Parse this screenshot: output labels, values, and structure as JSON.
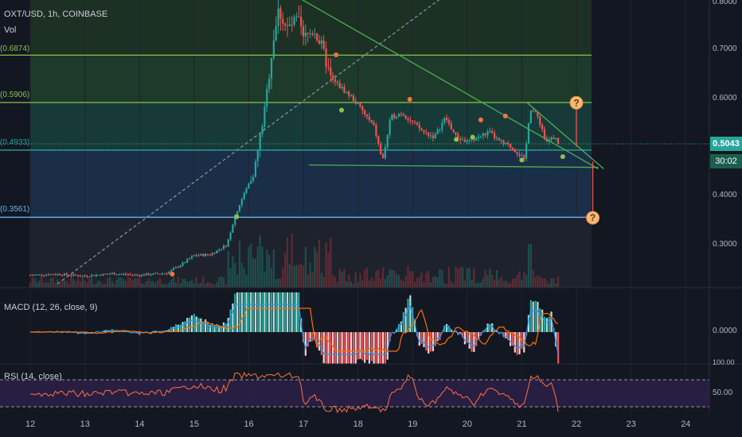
{
  "header": {
    "symbol": "OXT/USD, 1h, COINBASE",
    "vol_label": "Vol"
  },
  "price_axis": {
    "ticks": [
      "0.8000",
      "0.7000",
      "0.6000",
      "0.4000",
      "0.3000"
    ],
    "current_price": "0.5043",
    "countdown": "30:02"
  },
  "fib_levels": [
    {
      "label": "(0.6874)",
      "value": 0.6874,
      "color": "#8bc34a"
    },
    {
      "label": "(0.5906)",
      "value": 0.5906,
      "color": "#8bc34a"
    },
    {
      "label": "(0.4933)",
      "value": 0.4933,
      "color": "#26a69a"
    },
    {
      "label": "(0.3561)",
      "value": 0.3561,
      "color": "#64b5f6"
    }
  ],
  "macd": {
    "label": "MACD (12, 26, close, 9)",
    "tick": "0.0000",
    "top_tick": "100.00"
  },
  "rsi": {
    "label": "RSI (14, close)",
    "tick": "50.00"
  },
  "time_axis": [
    "12",
    "13",
    "14",
    "15",
    "16",
    "17",
    "18",
    "19",
    "20",
    "21",
    "22",
    "23",
    "24"
  ],
  "annotations": {
    "question_mark": "?"
  },
  "colors": {
    "background": "#131722",
    "up": "#26a69a",
    "down": "#ef5350",
    "trend": "#4caf50",
    "rsi": "#ff7043",
    "macd_line": "#2196f3",
    "signal_line": "#ff6d00"
  },
  "chart_data": {
    "type": "candlestick",
    "title": "OXT/USD, 1h, COINBASE",
    "x_ticks": [
      "12",
      "13",
      "14",
      "15",
      "16",
      "17",
      "18",
      "19",
      "20",
      "21",
      "22",
      "23",
      "24"
    ],
    "y_ticks": [
      0.8,
      0.7,
      0.6,
      0.4,
      0.3
    ],
    "ylim": [
      0.22,
      0.81
    ],
    "close_path": [
      [
        12.0,
        0.238
      ],
      [
        12.5,
        0.24
      ],
      [
        13.0,
        0.236
      ],
      [
        13.5,
        0.241
      ],
      [
        14.0,
        0.238
      ],
      [
        14.5,
        0.242
      ],
      [
        14.8,
        0.262
      ],
      [
        15.0,
        0.278
      ],
      [
        15.3,
        0.28
      ],
      [
        15.6,
        0.3
      ],
      [
        15.75,
        0.36
      ],
      [
        15.9,
        0.4
      ],
      [
        16.1,
        0.45
      ],
      [
        16.3,
        0.58
      ],
      [
        16.45,
        0.72
      ],
      [
        16.55,
        0.78
      ],
      [
        16.7,
        0.74
      ],
      [
        16.9,
        0.76
      ],
      [
        17.0,
        0.72
      ],
      [
        17.2,
        0.74
      ],
      [
        17.35,
        0.7
      ],
      [
        17.5,
        0.64
      ],
      [
        17.7,
        0.62
      ],
      [
        17.9,
        0.6
      ],
      [
        18.1,
        0.57
      ],
      [
        18.3,
        0.54
      ],
      [
        18.45,
        0.47
      ],
      [
        18.6,
        0.56
      ],
      [
        18.8,
        0.57
      ],
      [
        19.0,
        0.55
      ],
      [
        19.2,
        0.53
      ],
      [
        19.4,
        0.52
      ],
      [
        19.6,
        0.56
      ],
      [
        19.8,
        0.52
      ],
      [
        20.0,
        0.51
      ],
      [
        20.2,
        0.52
      ],
      [
        20.4,
        0.53
      ],
      [
        20.6,
        0.51
      ],
      [
        20.8,
        0.5
      ],
      [
        21.0,
        0.48
      ],
      [
        21.05,
        0.47
      ],
      [
        21.15,
        0.58
      ],
      [
        21.3,
        0.56
      ],
      [
        21.45,
        0.51
      ],
      [
        21.6,
        0.52
      ],
      [
        21.7,
        0.504
      ]
    ],
    "trendlines": [
      {
        "from": [
          16.8,
          0.812
        ],
        "to": [
          22.4,
          0.455
        ]
      },
      {
        "from": [
          21.1,
          0.59
        ],
        "to": [
          22.5,
          0.455
        ]
      },
      {
        "from": [
          17.1,
          0.463
        ],
        "to": [
          22.4,
          0.458
        ]
      },
      {
        "from": [
          12.5,
          0.22
        ],
        "to": [
          19.6,
          0.81
        ]
      }
    ],
    "targets": [
      {
        "label": "?",
        "x": 22.0,
        "y": 0.59
      },
      {
        "label": "?",
        "x": 22.3,
        "y": 0.355
      }
    ],
    "macd_label": "MACD (12, 26, close, 9)",
    "rsi_label": "RSI (14, close)",
    "rsi_levels": [
      70,
      50,
      30
    ]
  }
}
